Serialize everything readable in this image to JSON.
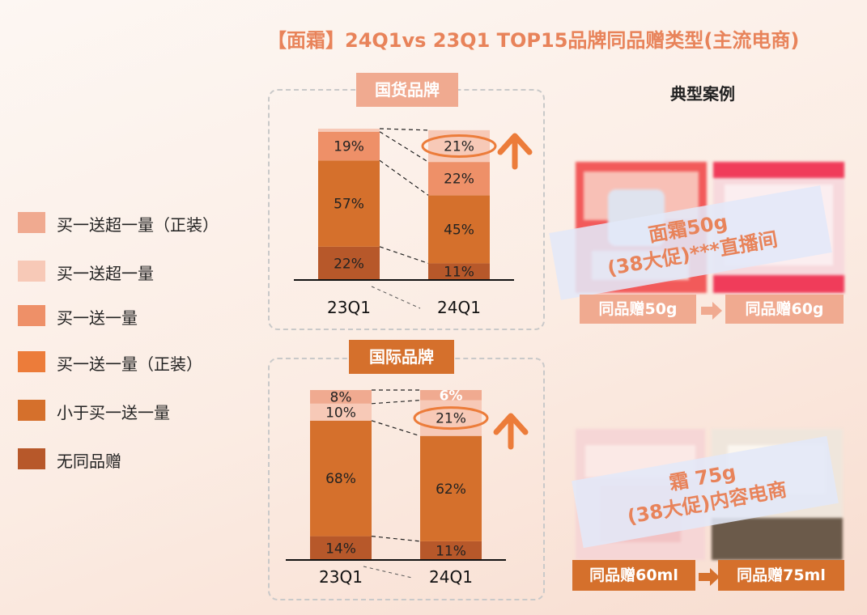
{
  "title": "【面霜】24Q1vs 23Q1 TOP15品牌同品赠类型(主流电商)",
  "colors": {
    "s1": "#f0aa90",
    "s2": "#f7c9b7",
    "s3": "#ee9068",
    "s4": "#ec7c3a",
    "s5": "#d5702c",
    "s6": "#b7582a",
    "arrow": "#ec7c3a",
    "accent": "#e8835a"
  },
  "legend": [
    {
      "label": "买一送超一量（正装）",
      "color": "#f0aa90"
    },
    {
      "label": "买一送超一量",
      "color": "#f7c9b7"
    },
    {
      "label": "买一送一量",
      "color": "#ee9068"
    },
    {
      "label": "买一送一量（正装）",
      "color": "#ec7c3a"
    },
    {
      "label": "小于买一送一量",
      "color": "#d5702c"
    },
    {
      "label": "无同品赠",
      "color": "#b7582a"
    }
  ],
  "chart_data": [
    {
      "type": "bar",
      "stacked": true,
      "title": "国货品牌",
      "categories": [
        "23Q1",
        "24Q1"
      ],
      "series": [
        {
          "name": "无同品赠",
          "values": [
            22,
            11
          ],
          "labels": [
            "22%",
            "11%"
          ]
        },
        {
          "name": "小于买一送一量",
          "values": [
            57,
            45
          ],
          "labels": [
            "57%",
            "45%"
          ]
        },
        {
          "name": "买一送一量",
          "values": [
            19,
            22
          ],
          "labels": [
            "19%",
            "22%"
          ]
        },
        {
          "name": "买一送超一量",
          "values": [
            2,
            21
          ],
          "labels": [
            "",
            "21%"
          ]
        }
      ],
      "ylim": [
        0,
        100
      ]
    },
    {
      "type": "bar",
      "stacked": true,
      "title": "国际品牌",
      "categories": [
        "23Q1",
        "24Q1"
      ],
      "series": [
        {
          "name": "无同品赠",
          "values": [
            14,
            11
          ],
          "labels": [
            "14%",
            "11%"
          ]
        },
        {
          "name": "小于买一送一量",
          "values": [
            68,
            62
          ],
          "labels": [
            "68%",
            "62%"
          ]
        },
        {
          "name": "买一送超一量",
          "values": [
            10,
            21
          ],
          "labels": [
            "10%",
            "21%"
          ]
        },
        {
          "name": "买一送超一量（正装）",
          "values": [
            8,
            6
          ],
          "labels": [
            "8%",
            "6%"
          ]
        }
      ],
      "ylim": [
        0,
        100
      ]
    }
  ],
  "cases": {
    "title": "典型案例",
    "case1": {
      "overlay_line1": "面霜50g",
      "overlay_line2": "(38大促)***直播间",
      "left_label": "同品赠50g",
      "right_label": "同品赠60g"
    },
    "case2": {
      "overlay_line1": "霜 75g",
      "overlay_line2": "(38大促)内容电商",
      "left_label": "同品赠60ml",
      "right_label": "同品赠75ml"
    }
  }
}
